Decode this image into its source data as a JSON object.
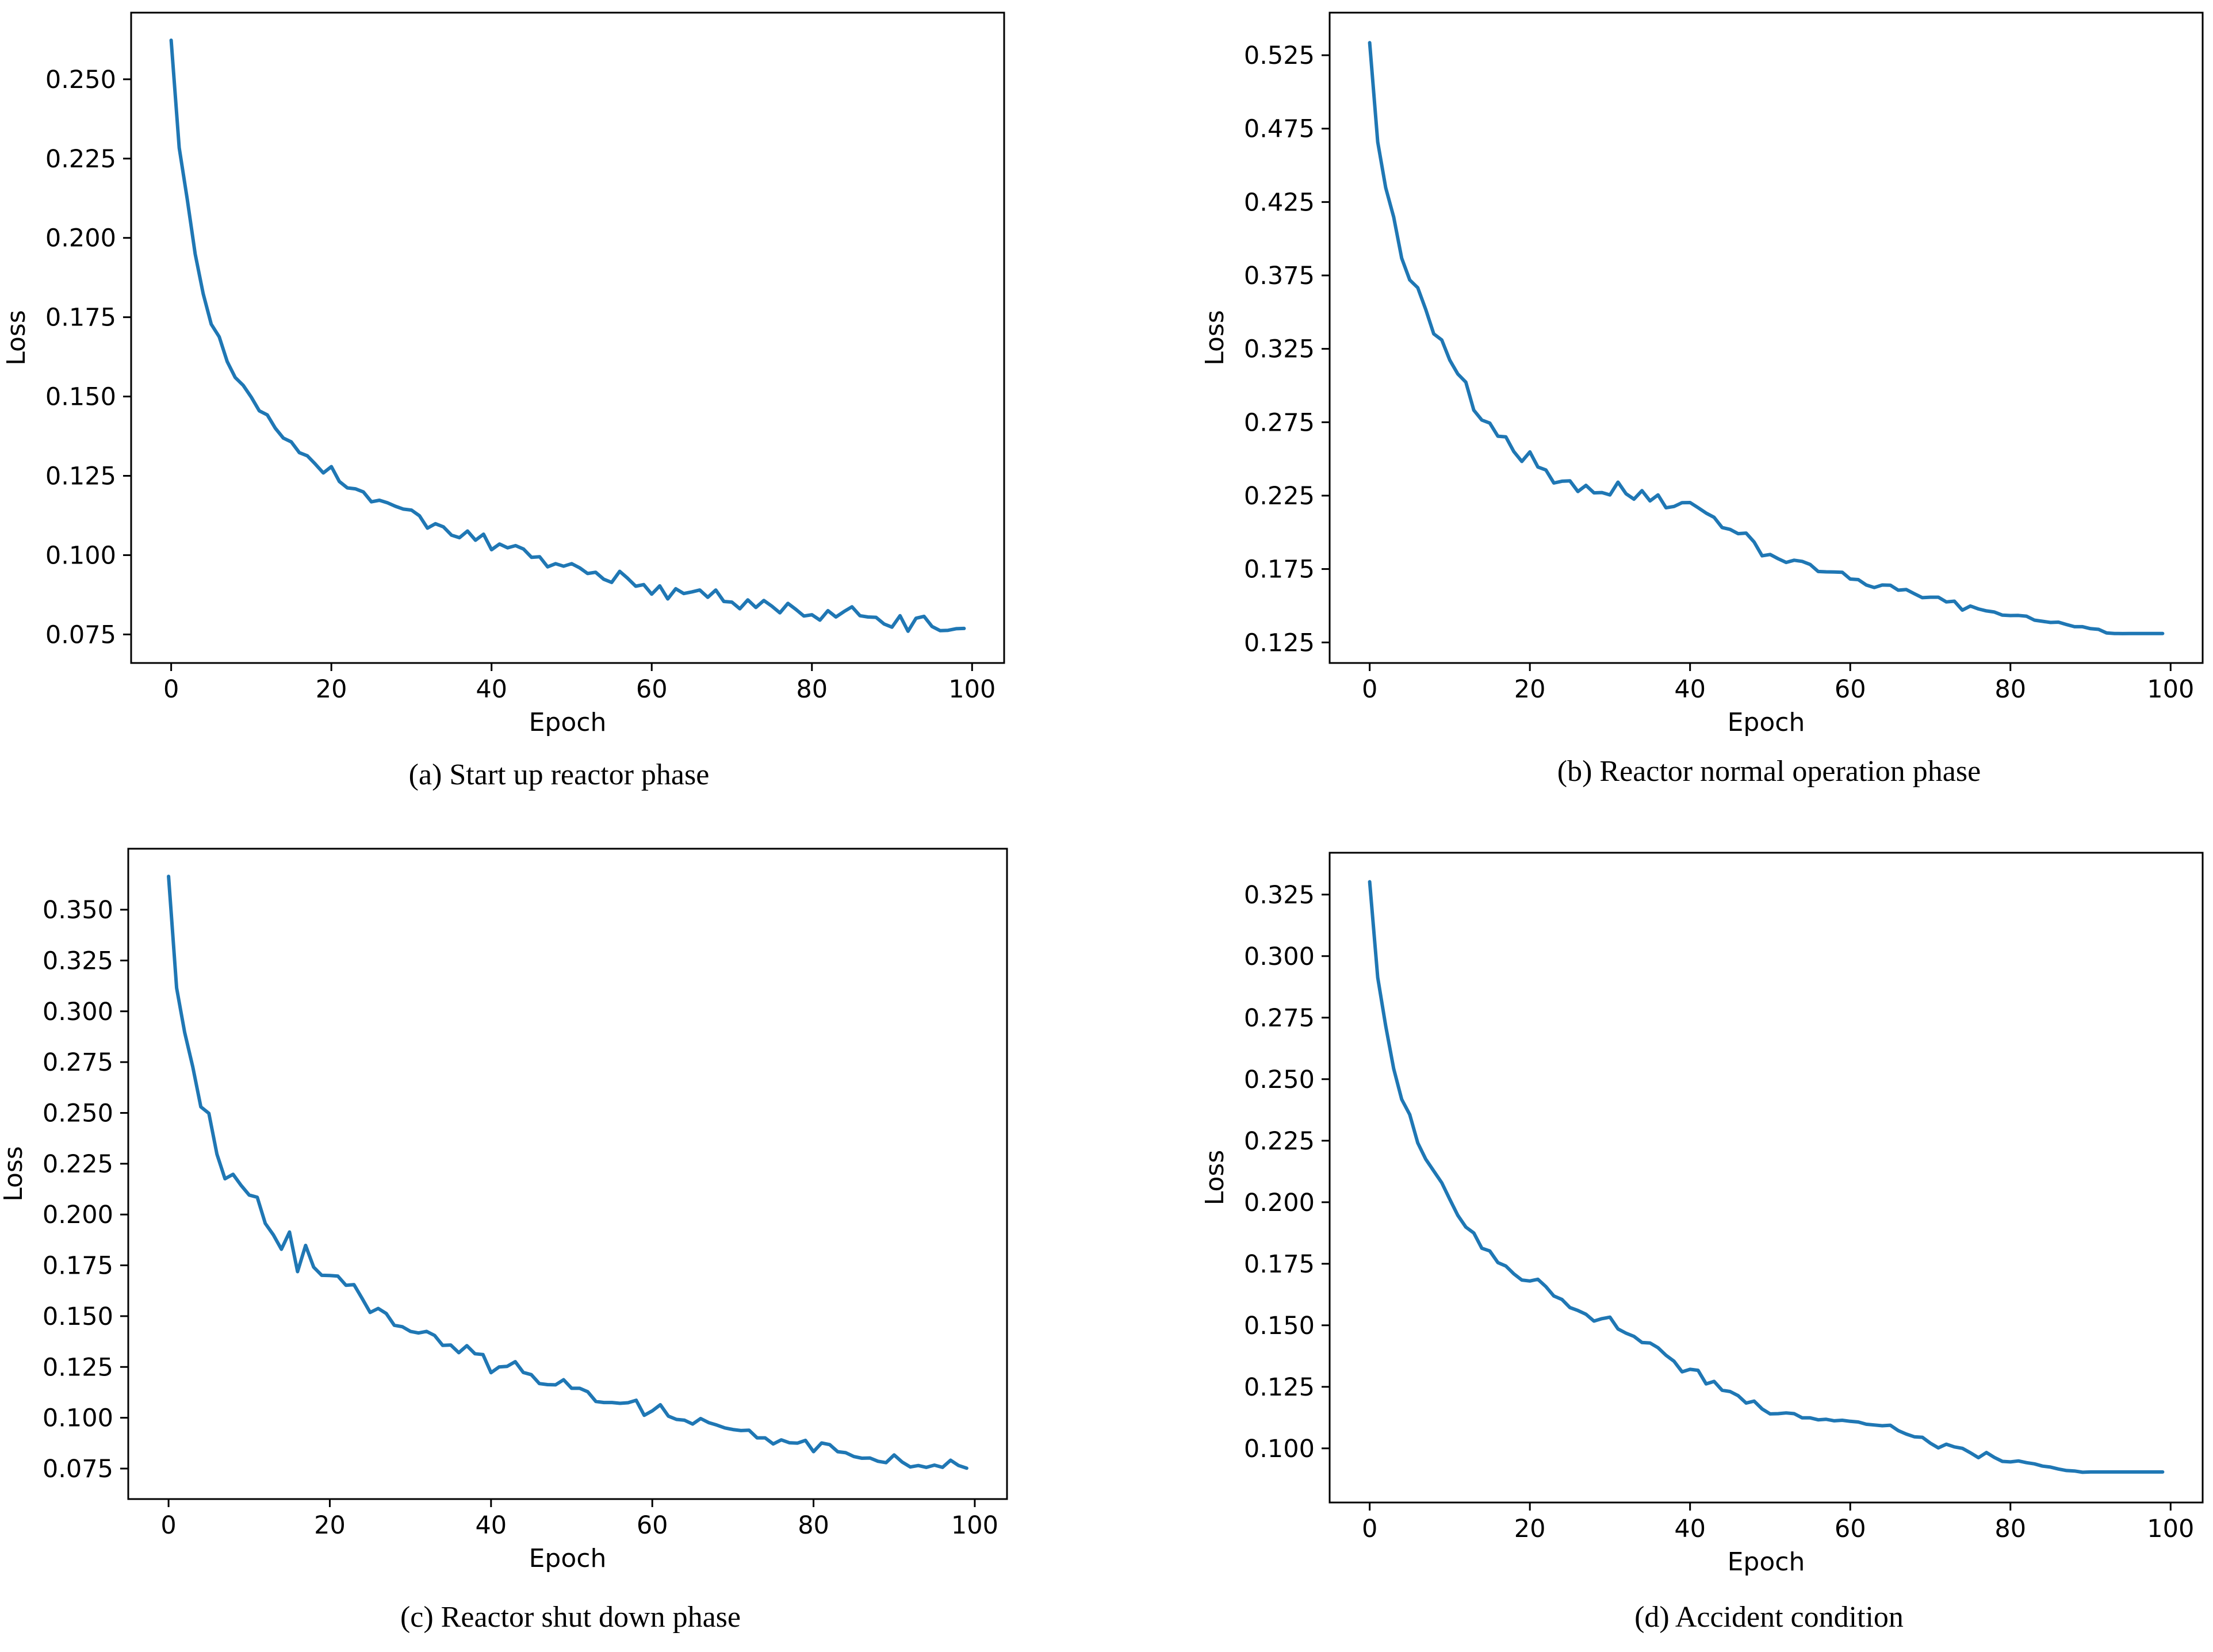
{
  "colors": {
    "series": "#1f77b4",
    "axis": "#000000",
    "background": "#ffffff"
  },
  "chart_data": [
    {
      "type": "line",
      "caption": "(a) Start up reactor phase",
      "title": "",
      "xlabel": "Epoch",
      "ylabel": "Loss",
      "xlim": [
        -5,
        104
      ],
      "ylim": [
        0.066,
        0.271
      ],
      "xticks": [
        0,
        20,
        40,
        60,
        80,
        100
      ],
      "xtick_labels": [
        "0",
        "20",
        "40",
        "60",
        "80",
        "100"
      ],
      "yticks": [
        0.075,
        0.1,
        0.125,
        0.15,
        0.175,
        0.2,
        0.225,
        0.25
      ],
      "ytick_labels": [
        "0.075",
        "0.100",
        "0.125",
        "0.150",
        "0.175",
        "0.200",
        "0.225",
        "0.250"
      ],
      "series": [
        {
          "name": "Loss",
          "values": [
            0.2623,
            0.2284,
            0.2123,
            0.1949,
            0.1824,
            0.1728,
            0.1688,
            0.161,
            0.156,
            0.1535,
            0.1498,
            0.1455,
            0.1442,
            0.14,
            0.1369,
            0.1357,
            0.1323,
            0.1313,
            0.1287,
            0.1259,
            0.1279,
            0.1232,
            0.1212,
            0.1209,
            0.1199,
            0.1168,
            0.1173,
            0.1165,
            0.1154,
            0.1145,
            0.1142,
            0.1124,
            0.1085,
            0.1099,
            0.1089,
            0.1063,
            0.1055,
            0.1076,
            0.1047,
            0.1066,
            0.1017,
            0.1035,
            0.1023,
            0.103,
            0.1019,
            0.0993,
            0.0995,
            0.0963,
            0.0973,
            0.0965,
            0.0973,
            0.096,
            0.0942,
            0.0946,
            0.0924,
            0.0914,
            0.0949,
            0.0927,
            0.0902,
            0.0907,
            0.0877,
            0.0903,
            0.0862,
            0.0894,
            0.0879,
            0.0884,
            0.089,
            0.0867,
            0.089,
            0.0854,
            0.0852,
            0.0831,
            0.0859,
            0.0835,
            0.0857,
            0.0839,
            0.0818,
            0.0848,
            0.0829,
            0.0808,
            0.0812,
            0.0795,
            0.0825,
            0.0805,
            0.0822,
            0.0837,
            0.0809,
            0.0805,
            0.0804,
            0.0783,
            0.0773,
            0.0809,
            0.076,
            0.0801,
            0.0807,
            0.0775,
            0.0762,
            0.0763,
            0.0768,
            0.0769
          ]
        }
      ]
    },
    {
      "type": "line",
      "caption": "(b) Reactor normal operation phase",
      "title": "",
      "xlabel": "Epoch",
      "ylabel": "Loss",
      "xlim": [
        -5,
        104
      ],
      "ylim": [
        0.111,
        0.554
      ],
      "xticks": [
        0,
        20,
        40,
        60,
        80,
        100
      ],
      "xtick_labels": [
        "0",
        "20",
        "40",
        "60",
        "80",
        "100"
      ],
      "yticks": [
        0.125,
        0.175,
        0.225,
        0.275,
        0.325,
        0.375,
        0.425,
        0.475,
        0.525
      ],
      "ytick_labels": [
        "0.125",
        "0.175",
        "0.225",
        "0.275",
        "0.325",
        "0.375",
        "0.425",
        "0.475",
        "0.525"
      ],
      "series": [
        {
          "name": "Loss",
          "values": [
            0.5335,
            0.4659,
            0.4347,
            0.4147,
            0.3867,
            0.3719,
            0.3666,
            0.3518,
            0.3352,
            0.331,
            0.3173,
            0.3079,
            0.3023,
            0.2832,
            0.2765,
            0.2744,
            0.2655,
            0.265,
            0.255,
            0.2483,
            0.2548,
            0.2445,
            0.2425,
            0.2336,
            0.2348,
            0.2351,
            0.2278,
            0.232,
            0.2269,
            0.2271,
            0.2255,
            0.2342,
            0.2263,
            0.2226,
            0.2284,
            0.2214,
            0.2255,
            0.2167,
            0.2176,
            0.2202,
            0.2203,
            0.2168,
            0.2131,
            0.2102,
            0.2033,
            0.202,
            0.1991,
            0.1995,
            0.1934,
            0.184,
            0.1849,
            0.182,
            0.1795,
            0.181,
            0.1802,
            0.1781,
            0.1733,
            0.1731,
            0.173,
            0.1728,
            0.1682,
            0.1678,
            0.1641,
            0.1624,
            0.1641,
            0.164,
            0.1606,
            0.161,
            0.1582,
            0.1555,
            0.1558,
            0.1558,
            0.1526,
            0.1531,
            0.147,
            0.1498,
            0.1478,
            0.1465,
            0.1457,
            0.1436,
            0.1433,
            0.1434,
            0.1429,
            0.1402,
            0.1394,
            0.1386,
            0.1388,
            0.1372,
            0.1357,
            0.1357,
            0.1344,
            0.1339,
            0.1315,
            0.1311,
            0.131,
            0.1311,
            0.1311,
            0.1311,
            0.1311,
            0.1311
          ]
        }
      ]
    },
    {
      "type": "line",
      "caption": "(c) Reactor shut down phase",
      "title": "",
      "xlabel": "Epoch",
      "ylabel": "Loss",
      "xlim": [
        -5,
        104
      ],
      "ylim": [
        0.06,
        0.38
      ],
      "xticks": [
        0,
        20,
        40,
        60,
        80,
        100
      ],
      "xtick_labels": [
        "0",
        "20",
        "40",
        "60",
        "80",
        "100"
      ],
      "yticks": [
        0.075,
        0.1,
        0.125,
        0.15,
        0.175,
        0.2,
        0.225,
        0.25,
        0.275,
        0.3,
        0.325,
        0.35
      ],
      "ytick_labels": [
        "0.075",
        "0.100",
        "0.125",
        "0.150",
        "0.175",
        "0.200",
        "0.225",
        "0.250",
        "0.275",
        "0.300",
        "0.325",
        "0.350"
      ],
      "series": [
        {
          "name": "Loss",
          "values": [
            0.3664,
            0.3115,
            0.2896,
            0.2728,
            0.253,
            0.2498,
            0.2297,
            0.2176,
            0.2198,
            0.2143,
            0.2096,
            0.2085,
            0.1956,
            0.19,
            0.1829,
            0.1914,
            0.1719,
            0.1848,
            0.1741,
            0.1701,
            0.17,
            0.1697,
            0.1652,
            0.1655,
            0.1588,
            0.1518,
            0.1538,
            0.1513,
            0.1455,
            0.1448,
            0.1425,
            0.1417,
            0.1425,
            0.1405,
            0.1356,
            0.1358,
            0.132,
            0.1355,
            0.1315,
            0.1311,
            0.1222,
            0.125,
            0.1253,
            0.1276,
            0.1223,
            0.1212,
            0.1168,
            0.1163,
            0.1162,
            0.1187,
            0.1145,
            0.1145,
            0.1128,
            0.108,
            0.1075,
            0.1075,
            0.1071,
            0.1074,
            0.1086,
            0.1012,
            0.1034,
            0.1064,
            0.1008,
            0.0992,
            0.0988,
            0.0969,
            0.0996,
            0.0976,
            0.0964,
            0.095,
            0.0942,
            0.0937,
            0.0939,
            0.0901,
            0.0901,
            0.0871,
            0.0891,
            0.0877,
            0.0875,
            0.0889,
            0.0833,
            0.0876,
            0.0868,
            0.0833,
            0.0828,
            0.0809,
            0.0801,
            0.0802,
            0.0786,
            0.0779,
            0.0817,
            0.0782,
            0.0758,
            0.0765,
            0.0756,
            0.0767,
            0.0756,
            0.0791,
            0.0765,
            0.0752
          ]
        }
      ]
    },
    {
      "type": "line",
      "caption": "(d) Accident condition",
      "title": "",
      "xlabel": "Epoch",
      "ylabel": "Loss",
      "xlim": [
        -5,
        104
      ],
      "ylim": [
        0.078,
        0.342
      ],
      "xticks": [
        0,
        20,
        40,
        60,
        80,
        100
      ],
      "xtick_labels": [
        "0",
        "20",
        "40",
        "60",
        "80",
        "100"
      ],
      "yticks": [
        0.1,
        0.125,
        0.15,
        0.175,
        0.2,
        0.225,
        0.25,
        0.275,
        0.3,
        0.325
      ],
      "ytick_labels": [
        "0.100",
        "0.125",
        "0.150",
        "0.175",
        "0.200",
        "0.225",
        "0.250",
        "0.275",
        "0.300",
        "0.325"
      ],
      "series": [
        {
          "name": "Loss",
          "values": [
            0.3302,
            0.2913,
            0.2716,
            0.2542,
            0.2418,
            0.2356,
            0.2241,
            0.2175,
            0.2127,
            0.2079,
            0.2012,
            0.1947,
            0.1899,
            0.1875,
            0.1813,
            0.1802,
            0.1755,
            0.1741,
            0.1709,
            0.1684,
            0.168,
            0.1687,
            0.1657,
            0.1619,
            0.1605,
            0.1572,
            0.156,
            0.1545,
            0.1517,
            0.1527,
            0.1533,
            0.1485,
            0.1468,
            0.1455,
            0.143,
            0.1428,
            0.1409,
            0.1378,
            0.1354,
            0.1311,
            0.1321,
            0.1317,
            0.1262,
            0.1272,
            0.1236,
            0.1231,
            0.1214,
            0.1184,
            0.1192,
            0.116,
            0.114,
            0.1141,
            0.1144,
            0.1141,
            0.1124,
            0.1124,
            0.1116,
            0.1118,
            0.1112,
            0.1114,
            0.111,
            0.1107,
            0.1098,
            0.1095,
            0.1092,
            0.1094,
            0.1072,
            0.1058,
            0.1047,
            0.1045,
            0.1021,
            0.1002,
            0.1017,
            0.1006,
            0.1,
            0.0982,
            0.0962,
            0.0983,
            0.0963,
            0.0947,
            0.0945,
            0.0949,
            0.0942,
            0.0937,
            0.0928,
            0.0924,
            0.0916,
            0.091,
            0.0908,
            0.0903,
            0.0904,
            0.0904,
            0.0904,
            0.0904,
            0.0904,
            0.0904,
            0.0904,
            0.0904,
            0.0904,
            0.0904
          ]
        }
      ]
    }
  ]
}
